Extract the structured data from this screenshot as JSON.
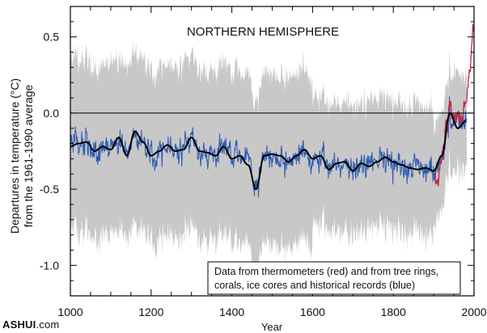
{
  "chart_data": {
    "type": "line",
    "title": "NORTHERN HEMISPHERE",
    "xlabel": "Year",
    "ylabel_lines": [
      "Departures in temperature (°C)",
      "from the 1961-1990 average"
    ],
    "xlim": [
      1000,
      2000
    ],
    "ylim": [
      -1.2,
      0.7
    ],
    "x_ticks": [
      1000,
      1200,
      1400,
      1600,
      1800,
      2000
    ],
    "y_ticks": [
      -1.0,
      -0.5,
      0.0,
      0.5
    ],
    "y_tick_labels": [
      "-1.0",
      "-0.5",
      "0.0",
      "0.5"
    ],
    "annotation": [
      "Data from thermometers (red) and from tree rings,",
      "corals, ice cores and historical records (blue)"
    ],
    "colors": {
      "thermometer": "#c8283c",
      "proxy": "#2d5bb0",
      "smoothed": "#000000",
      "uncertainty": "#c8c8c8"
    },
    "series": [
      {
        "x": [
          1000,
          1020,
          1040,
          1060,
          1080,
          1100,
          1120,
          1140,
          1160,
          1180,
          1200,
          1220,
          1240,
          1260,
          1280,
          1300,
          1320,
          1340,
          1360,
          1380,
          1400,
          1420,
          1440,
          1460,
          1480,
          1500,
          1520,
          1540,
          1560,
          1580,
          1600,
          1620,
          1640,
          1660,
          1680,
          1700,
          1720,
          1740,
          1760,
          1780,
          1800,
          1820,
          1840,
          1860,
          1880,
          1900,
          1920,
          1940,
          1960,
          1980
        ],
        "values": [
          -0.22,
          -0.2,
          -0.19,
          -0.25,
          -0.22,
          -0.24,
          -0.16,
          -0.28,
          -0.12,
          -0.19,
          -0.28,
          -0.25,
          -0.21,
          -0.25,
          -0.24,
          -0.16,
          -0.25,
          -0.26,
          -0.28,
          -0.22,
          -0.3,
          -0.28,
          -0.34,
          -0.5,
          -0.28,
          -0.27,
          -0.28,
          -0.32,
          -0.28,
          -0.24,
          -0.3,
          -0.28,
          -0.37,
          -0.33,
          -0.32,
          -0.38,
          -0.33,
          -0.35,
          -0.32,
          -0.29,
          -0.32,
          -0.34,
          -0.36,
          -0.37,
          -0.36,
          -0.38,
          -0.28,
          0.0,
          -0.1,
          -0.05
        ]
      },
      {
        "x": [
          1902,
          1910,
          1920,
          1930,
          1940,
          1950,
          1960,
          1970,
          1980,
          1990,
          1998
        ],
        "values": [
          -0.4,
          -0.45,
          -0.3,
          -0.1,
          0.05,
          -0.05,
          -0.02,
          -0.05,
          0.08,
          0.3,
          0.55
        ]
      }
    ]
  },
  "watermark": {
    "bold": "ASHUI",
    "suffix": ".com"
  }
}
